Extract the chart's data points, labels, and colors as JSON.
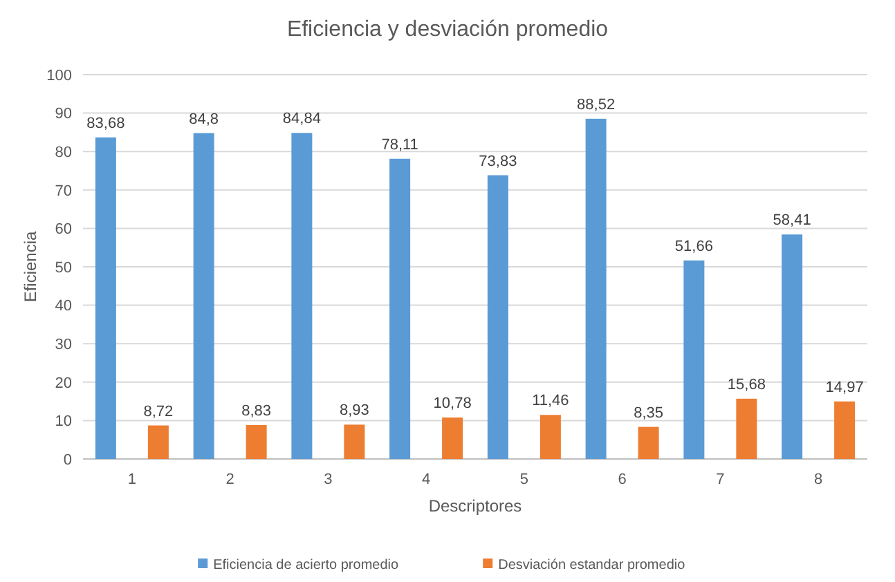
{
  "chart_data": {
    "type": "bar",
    "title": "Eficiencia y desviación promedio",
    "xlabel": "Descriptores",
    "ylabel": "Eficiencia",
    "categories": [
      "1",
      "2",
      "3",
      "4",
      "5",
      "6",
      "7",
      "8"
    ],
    "series": [
      {
        "name": "Eficiencia de acierto promedio",
        "color": "#5b9bd5",
        "values": [
          83.68,
          84.8,
          84.84,
          78.11,
          73.83,
          88.52,
          51.66,
          58.41
        ],
        "value_labels": [
          "83,68",
          "84,8",
          "84,84",
          "78,11",
          "73,83",
          "88,52",
          "51,66",
          "58,41"
        ]
      },
      {
        "name": "Desviación estandar promedio",
        "color": "#ed7d31",
        "values": [
          8.72,
          8.83,
          8.93,
          10.78,
          11.46,
          8.35,
          15.68,
          14.97
        ],
        "value_labels": [
          "8,72",
          "8,83",
          "8,93",
          "10,78",
          "11,46",
          "8,35",
          "15,68",
          "14,97"
        ]
      }
    ],
    "ylim": [
      0,
      100
    ],
    "yticks": [
      0,
      10,
      20,
      30,
      40,
      50,
      60,
      70,
      80,
      90,
      100
    ],
    "grid": "y",
    "legend": "bottom"
  }
}
